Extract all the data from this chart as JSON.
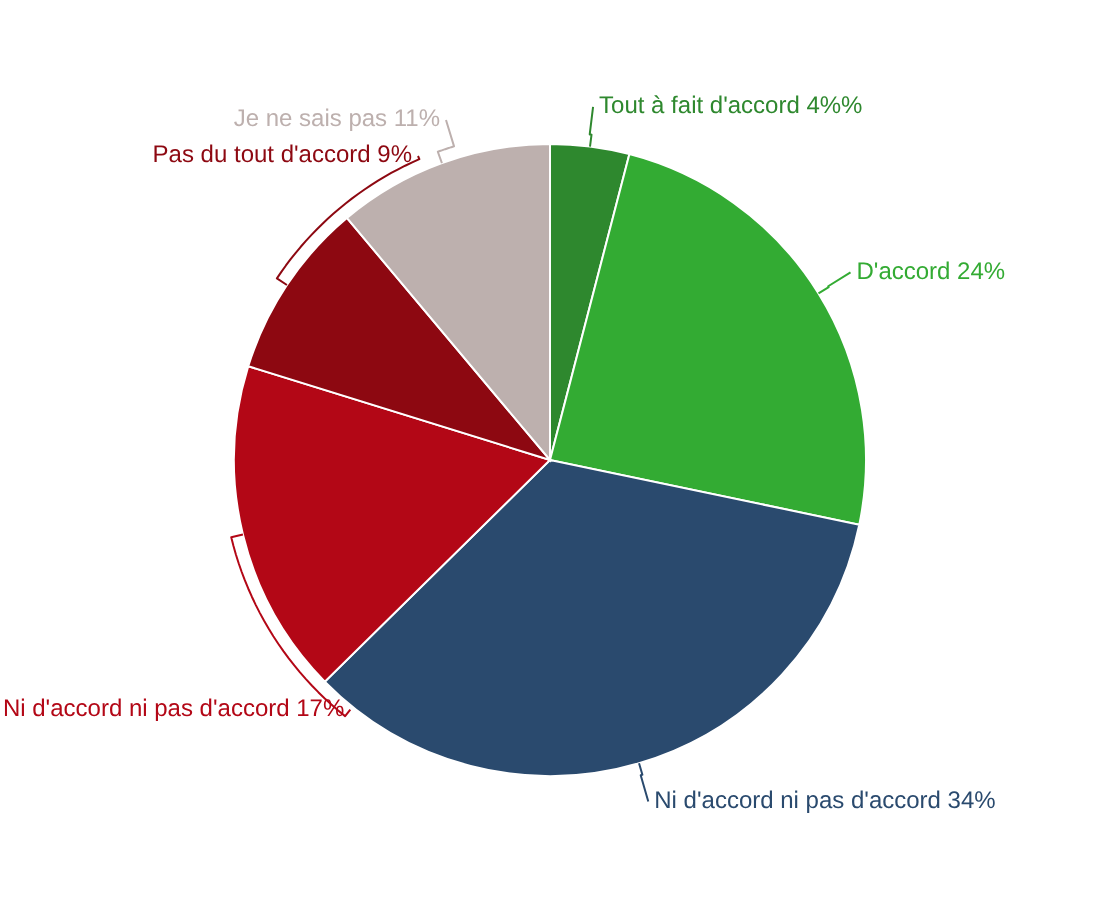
{
  "chart_data": {
    "type": "pie",
    "categories": [
      "Tout à fait d'accord",
      "D'accord",
      "Ni d'accord ni pas d'accord",
      "Ni d'accord ni pas d'accord",
      "Pas du tout d'accord",
      "Je ne sais pas"
    ],
    "values": [
      4,
      24,
      34,
      17,
      9,
      11
    ],
    "value_labels": [
      "4%%",
      "24%",
      "34%",
      "17%",
      "9%",
      "11%"
    ],
    "colors": [
      "#2e882e",
      "#33ab33",
      "#2a4a6e",
      "#b30716",
      "#8d0811",
      "#bdb0ae"
    ]
  }
}
